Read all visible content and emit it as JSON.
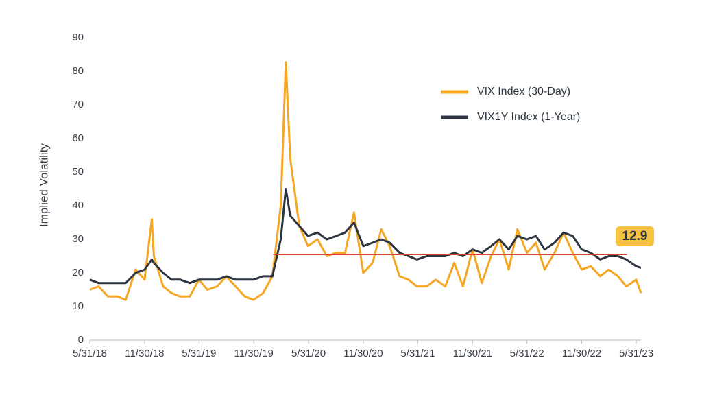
{
  "chart_data": {
    "type": "line",
    "y_label": "Implied Volatility",
    "x": [
      "2018-05-31",
      "2018-06-29",
      "2018-07-31",
      "2018-08-31",
      "2018-09-28",
      "2018-10-31",
      "2018-11-30",
      "2018-12-24",
      "2018-12-31",
      "2019-01-31",
      "2019-02-28",
      "2019-03-29",
      "2019-04-30",
      "2019-05-31",
      "2019-06-28",
      "2019-07-31",
      "2019-08-30",
      "2019-09-30",
      "2019-10-31",
      "2019-11-29",
      "2019-12-31",
      "2020-01-31",
      "2020-02-28",
      "2020-03-16",
      "2020-03-31",
      "2020-04-30",
      "2020-05-29",
      "2020-06-30",
      "2020-07-31",
      "2020-08-31",
      "2020-09-30",
      "2020-10-30",
      "2020-11-30",
      "2020-12-31",
      "2021-01-29",
      "2021-02-26",
      "2021-03-31",
      "2021-04-30",
      "2021-05-28",
      "2021-06-30",
      "2021-07-30",
      "2021-08-31",
      "2021-09-30",
      "2021-10-29",
      "2021-11-30",
      "2021-12-31",
      "2022-01-31",
      "2022-02-28",
      "2022-03-31",
      "2022-04-29",
      "2022-05-31",
      "2022-06-30",
      "2022-07-29",
      "2022-08-31",
      "2022-09-30",
      "2022-10-31",
      "2022-11-30",
      "2022-12-30",
      "2023-01-31",
      "2023-02-28",
      "2023-03-31",
      "2023-04-28",
      "2023-05-31",
      "2023-06-16"
    ],
    "series": [
      {
        "name": "VIX Index (30-Day)",
        "color": "#f5a623",
        "values": [
          15,
          16,
          13,
          13,
          12,
          21,
          18,
          36,
          25,
          16,
          14,
          13,
          13,
          18,
          15,
          16,
          19,
          16,
          13,
          12,
          14,
          19,
          40,
          82.7,
          54,
          34,
          28,
          30,
          25,
          26,
          26,
          38,
          20,
          23,
          33,
          28,
          19,
          18,
          16,
          16,
          18,
          16,
          23,
          16,
          27,
          17,
          25,
          30,
          21,
          33,
          26,
          29,
          21,
          26,
          32,
          26,
          21,
          22,
          19,
          21,
          19,
          16,
          18,
          14
        ]
      },
      {
        "name": "VIX1Y Index (1-Year)",
        "color": "#2d3540",
        "values": [
          18,
          17,
          17,
          17,
          17,
          20,
          21,
          24,
          23,
          20,
          18,
          18,
          17,
          18,
          18,
          18,
          19,
          18,
          18,
          18,
          19,
          19,
          30,
          45,
          37,
          34,
          31,
          32,
          30,
          31,
          32,
          35,
          28,
          29,
          30,
          29,
          26,
          25,
          24,
          25,
          25,
          25,
          26,
          25,
          27,
          26,
          28,
          30,
          27,
          31,
          30,
          31,
          27,
          29,
          32,
          31,
          27,
          26,
          24,
          25,
          25,
          24,
          22,
          21.5
        ]
      }
    ],
    "xlim": [
      "2018-05-31",
      "2023-06-16"
    ],
    "xticks": [
      {
        "value": "2018-05-31",
        "label": "5/31/18"
      },
      {
        "value": "2018-11-30",
        "label": "11/30/18"
      },
      {
        "value": "2019-05-31",
        "label": "5/31/19"
      },
      {
        "value": "2019-11-30",
        "label": "11/30/19"
      },
      {
        "value": "2020-05-31",
        "label": "5/31/20"
      },
      {
        "value": "2020-11-30",
        "label": "11/30/20"
      },
      {
        "value": "2021-05-31",
        "label": "5/31/21"
      },
      {
        "value": "2021-11-30",
        "label": "11/30/21"
      },
      {
        "value": "2022-05-31",
        "label": "5/31/22"
      },
      {
        "value": "2022-11-30",
        "label": "11/30/22"
      },
      {
        "value": "2023-05-31",
        "label": "5/31/23"
      }
    ],
    "ylim": [
      0,
      90
    ],
    "yticks": [
      0,
      10,
      20,
      30,
      40,
      50,
      60,
      70,
      80,
      90
    ],
    "ref_line": {
      "value": 25.5,
      "x": [
        "2020-02-03",
        "2023-04-30"
      ],
      "color": "#e53935"
    },
    "annotation": {
      "text": "12.9"
    }
  }
}
